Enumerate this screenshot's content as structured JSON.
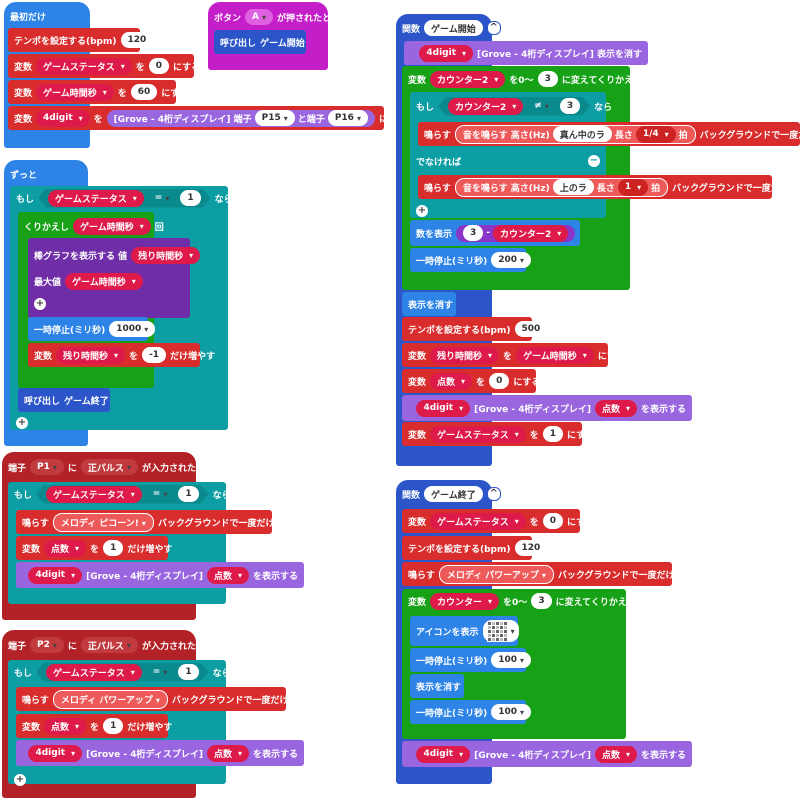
{
  "on_start": {
    "hat": "最初だけ",
    "tempo_label": "テンポを設定する(bpm)",
    "tempo_value": "120",
    "var_label": "変数",
    "to_label": "を",
    "set_label": "にする",
    "var_game_status": "ゲームステータス",
    "val_0": "0",
    "var_game_time": "ゲーム時間秒",
    "val_60": "60",
    "var_4digit": "4digit",
    "grove_open": "[Grove - 4桁ディスプレイ] 端子",
    "pin_p15": "P15",
    "and_pin": "と端子",
    "pin_p16": "P16"
  },
  "button_a": {
    "label_button": "ボタン",
    "button": "A",
    "pressed": "が押されたとき",
    "call": "呼び出し",
    "func": "ゲーム開始"
  },
  "forever": {
    "hat": "ずっと",
    "if_label": "もし",
    "then": "なら",
    "var_game_status": "ゲームステータス",
    "op_eq": "=",
    "val_1": "1",
    "repeat": "くりかえし",
    "var_game_time": "ゲーム時間秒",
    "times": "回",
    "bargraph": "棒グラフを表示する 値",
    "var_remaining": "残り時間秒",
    "max_label": "最大値",
    "pause_label": "一時停止(ミリ秒)",
    "pause_value": "1000",
    "var_label": "変数",
    "to_label": "を",
    "change_value": "-1",
    "change_label": "だけ増やす",
    "call": "呼び出し",
    "func_end": "ゲーム終了"
  },
  "pin_p1": {
    "pin_label": "端子",
    "pin": "P1",
    "ni": "に",
    "pulse": "正パルス",
    "received": "が入力されたとき",
    "if_label": "もし",
    "then": "なら",
    "var_game_status": "ゲームステータス",
    "op_eq": "=",
    "val_1": "1",
    "play": "鳴らす",
    "melody": "メロディ",
    "melody_name": "ピコーン!",
    "background_once": "バックグラウンドで一度だけ",
    "var_label": "変数",
    "var_score": "点数",
    "to_label": "を",
    "val_1b": "1",
    "change_label": "だけ増やす",
    "var_4digit": "4digit",
    "grove_show": "[Grove - 4桁ディスプレイ]",
    "show_label": "を表示する"
  },
  "pin_p2": {
    "pin_label": "端子",
    "pin": "P2",
    "ni": "に",
    "pulse": "正パルス",
    "received": "が入力されたとき",
    "if_label": "もし",
    "then": "なら",
    "var_game_status": "ゲームステータス",
    "op_eq": "=",
    "val_1": "1",
    "play": "鳴らす",
    "melody": "メロディ",
    "melody_name": "パワーアップ",
    "background_once": "バックグラウンドで一度だけ",
    "var_label": "変数",
    "var_score": "点数",
    "to_label": "を",
    "val_1b": "1",
    "change_label": "だけ増やす",
    "var_4digit": "4digit",
    "grove_show": "[Grove - 4桁ディスプレイ]",
    "show_label": "を表示する"
  },
  "func_start": {
    "func_label": "関数",
    "name": "ゲーム開始",
    "var_4digit": "4digit",
    "grove_clear": "[Grove - 4桁ディスプレイ] 表示を消す",
    "var_label": "変数",
    "var_counter2": "カウンター2",
    "loop_from": "を0〜",
    "loop_to": "3",
    "loop_label": "に変えてくりかえす",
    "if_label": "もし",
    "then": "なら",
    "op_neq": "≠",
    "val_3": "3",
    "play": "鳴らす",
    "tone": "音を鳴らす 高さ(Hz)",
    "note_mid": "真ん中のラ",
    "length": "長さ",
    "beat_quarter": "1/4",
    "beat": "拍",
    "background_once": "バックグラウンドで一度だけ",
    "else": "でなければ",
    "note_high": "上のラ",
    "beat_one": "1",
    "show_number": "数を表示",
    "minus": "-",
    "pause_label": "一時停止(ミリ秒)",
    "pause_value": "200",
    "clear_screen": "表示を消す",
    "tempo_label": "テンポを設定する(bpm)",
    "tempo_value": "500",
    "var_remaining": "残り時間秒",
    "to_label": "を",
    "var_game_time": "ゲーム時間秒",
    "set_label": "にする",
    "var_score": "点数",
    "val_0": "0",
    "grove_show": "[Grove - 4桁ディスプレイ]",
    "show_label": "を表示する",
    "var_game_status": "ゲームステータス",
    "val_1": "1"
  },
  "func_end": {
    "func_label": "関数",
    "name": "ゲーム終了",
    "var_label": "変数",
    "var_game_status": "ゲームステータス",
    "to_label": "を",
    "val_0": "0",
    "set_label": "にする",
    "tempo_label": "テンポを設定する(bpm)",
    "tempo_value": "120",
    "play": "鳴らす",
    "melody": "メロディ",
    "melody_name": "パワーアップ",
    "background_once": "バックグラウンドで一度だけ",
    "var_counter": "カウンター",
    "loop_from": "を0〜",
    "loop_to": "3",
    "loop_label": "に変えてくりかえす",
    "show_icon": "アイコンを表示",
    "icon_name": "checkerboard-icon",
    "pause_label": "一時停止(ミリ秒)",
    "pause_value": "100",
    "clear_screen": "表示を消す",
    "var_4digit": "4digit",
    "grove_show": "[Grove - 4桁ディスプレイ]",
    "var_score": "点数",
    "show_label": "を表示する"
  }
}
